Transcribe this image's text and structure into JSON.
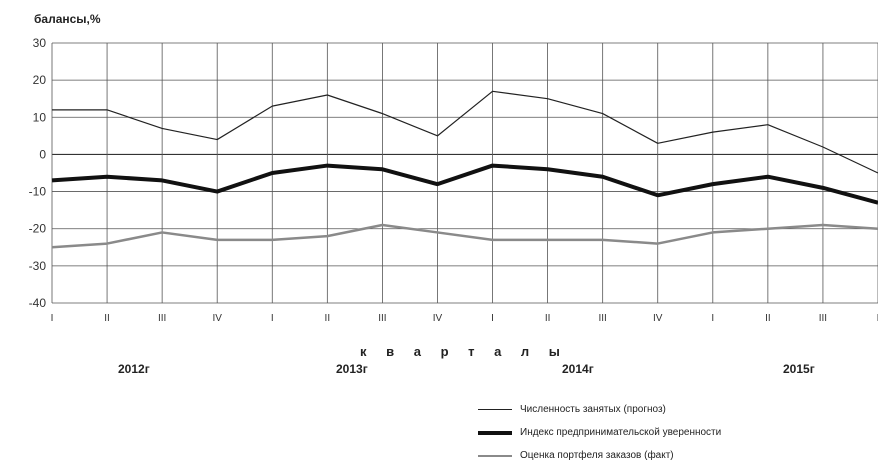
{
  "chart_data": {
    "type": "line",
    "ylabel": "балансы,%",
    "xlabel": "к в а р т а л ы",
    "ylim": [
      -40,
      30
    ],
    "yticks": [
      30,
      20,
      10,
      0,
      -10,
      -20,
      -30,
      -40
    ],
    "x": [
      "I",
      "II",
      "III",
      "IV",
      "I",
      "II",
      "III",
      "IV",
      "I",
      "II",
      "III",
      "IV",
      "I",
      "II",
      "III",
      "I"
    ],
    "years": [
      "2012г",
      "2013г",
      "2014г",
      "2015г"
    ],
    "grid": true,
    "legend_position": "bottom-right",
    "series": [
      {
        "name": "Численность занятых (прогноз)",
        "color": "#222222",
        "width": 1.2,
        "values": [
          12,
          12,
          7,
          4,
          13,
          16,
          11,
          5,
          17,
          15,
          11,
          3,
          6,
          8,
          2,
          -5
        ]
      },
      {
        "name": "Индекс предпринимательской уверенности",
        "color": "#111111",
        "width": 4,
        "values": [
          -7,
          -6,
          -7,
          -10,
          -5,
          -3,
          -4,
          -8,
          -3,
          -4,
          -6,
          -11,
          -8,
          -6,
          -9,
          -13
        ]
      },
      {
        "name": "Оценка портфеля заказов (факт)",
        "color": "#8a8a8a",
        "width": 2.5,
        "values": [
          -25,
          -24,
          -21,
          -23,
          -23,
          -22,
          -19,
          -21,
          -23,
          -23,
          -23,
          -24,
          -21,
          -20,
          -19,
          -20
        ]
      }
    ]
  }
}
